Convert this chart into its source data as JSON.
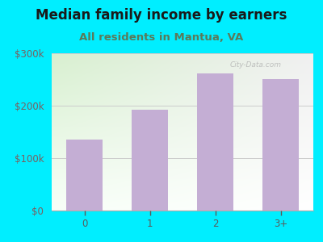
{
  "title": "Median family income by earners",
  "subtitle": "All residents in Mantua, VA",
  "categories": [
    "0",
    "1",
    "2",
    "3+"
  ],
  "values": [
    135000,
    193000,
    261000,
    251000
  ],
  "bar_color": "#c4aed4",
  "ylim": [
    0,
    300000
  ],
  "yticks": [
    0,
    100000,
    200000,
    300000
  ],
  "ytick_labels": [
    "$0",
    "$100k",
    "$200k",
    "$300k"
  ],
  "background_outer": "#00eeff",
  "background_inner_top_left": "#d8f0d0",
  "background_inner_right": "#f0f0f0",
  "title_color": "#1a1a1a",
  "subtitle_color": "#5a7a5a",
  "ytick_color": "#7a6060",
  "xtick_color": "#5a5a5a",
  "title_fontsize": 12,
  "subtitle_fontsize": 9.5,
  "tick_fontsize": 8.5
}
